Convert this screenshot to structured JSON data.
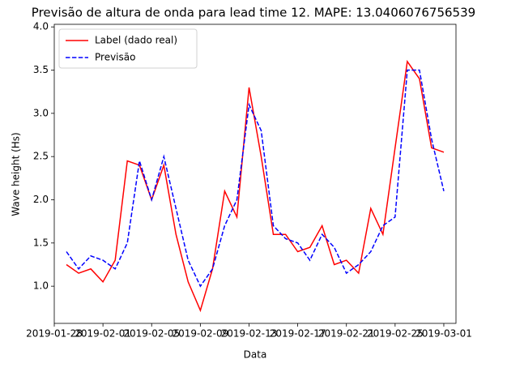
{
  "chart_data": {
    "type": "line",
    "title": "Previsão de altura de onda para lead time 12. MAPE: 13.0406076756539",
    "x_label": "Data",
    "y_label": "Wave height (Hs)",
    "x": [
      "2019-01-29",
      "2019-01-30",
      "2019-01-31",
      "2019-02-01",
      "2019-02-02",
      "2019-02-03",
      "2019-02-04",
      "2019-02-05",
      "2019-02-06",
      "2019-02-07",
      "2019-02-08",
      "2019-02-09",
      "2019-02-10",
      "2019-02-11",
      "2019-02-12",
      "2019-02-13",
      "2019-02-14",
      "2019-02-15",
      "2019-02-16",
      "2019-02-17",
      "2019-02-18",
      "2019-02-19",
      "2019-02-20",
      "2019-02-21",
      "2019-02-22",
      "2019-02-23",
      "2019-02-24",
      "2019-02-25",
      "2019-02-26",
      "2019-02-27",
      "2019-02-28",
      "2019-03-01"
    ],
    "series": [
      {
        "name": "Label (dado real)",
        "color": "#ff0000",
        "dash": "solid",
        "values": [
          1.25,
          1.15,
          1.2,
          1.05,
          1.3,
          2.45,
          2.4,
          2.0,
          2.4,
          1.6,
          1.05,
          0.72,
          1.2,
          2.1,
          1.8,
          3.3,
          2.5,
          1.6,
          1.6,
          1.4,
          1.45,
          1.7,
          1.25,
          1.3,
          1.15,
          1.9,
          1.6,
          2.6,
          3.6,
          3.4,
          2.6,
          2.55
        ]
      },
      {
        "name": "Previsão",
        "color": "#0000ff",
        "dash": "dashed",
        "values": [
          1.4,
          1.2,
          1.35,
          1.3,
          1.2,
          1.5,
          2.45,
          2.0,
          2.5,
          1.9,
          1.3,
          1.0,
          1.2,
          1.7,
          2.0,
          3.1,
          2.8,
          1.7,
          1.55,
          1.5,
          1.3,
          1.6,
          1.45,
          1.15,
          1.25,
          1.4,
          1.7,
          1.8,
          3.5,
          3.5,
          2.7,
          2.1
        ]
      }
    ],
    "xlim": [
      "2019-01-28",
      "2019-03-02"
    ],
    "xticks": [
      "2019-01-28",
      "2019-02-01",
      "2019-02-05",
      "2019-02-09",
      "2019-02-13",
      "2019-02-17",
      "2019-02-21",
      "2019-02-25",
      "2019-03-01"
    ],
    "ylim": [
      0.57,
      4.03
    ],
    "yticks": [
      {
        "value": 1,
        "label": "1.0"
      },
      {
        "value": 1.5,
        "label": "1.5"
      },
      {
        "value": 2,
        "label": "2.0"
      },
      {
        "value": 2.5,
        "label": "2.5"
      },
      {
        "value": 3,
        "label": "3.0"
      },
      {
        "value": 3.5,
        "label": "3.5"
      },
      {
        "value": 4,
        "label": "4.0"
      }
    ],
    "legend": "upper-left",
    "grid": false
  }
}
